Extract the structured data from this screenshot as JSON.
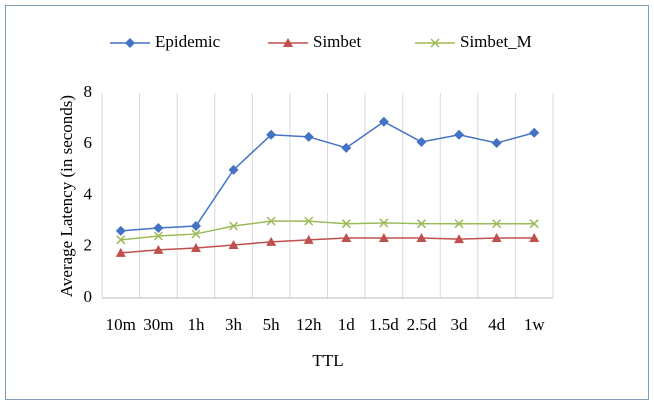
{
  "chart_data": {
    "type": "line",
    "categories": [
      "10m",
      "30m",
      "1h",
      "3h",
      "5h",
      "12h",
      "1d",
      "1.5d",
      "2.5d",
      "3d",
      "4d",
      "1w"
    ],
    "series": [
      {
        "name": "Epidemic",
        "color": "#4472c4",
        "marker": "diamond",
        "values": [
          2.62,
          2.73,
          2.81,
          5.0,
          6.37,
          6.29,
          5.86,
          6.88,
          6.09,
          6.37,
          6.05,
          6.45
        ]
      },
      {
        "name": "Simbet",
        "color": "#c0504d",
        "marker": "triangle",
        "values": [
          1.76,
          1.88,
          1.95,
          2.07,
          2.19,
          2.27,
          2.34,
          2.34,
          2.34,
          2.3,
          2.34,
          2.34
        ]
      },
      {
        "name": "Simbet_M",
        "color": "#9bbb59",
        "marker": "x",
        "values": [
          2.27,
          2.42,
          2.5,
          2.81,
          3.0,
          3.0,
          2.9,
          2.93,
          2.9,
          2.9,
          2.9,
          2.9
        ]
      }
    ],
    "x_label": "TTL",
    "y_label": "Average Latency (in seconds)",
    "ylim": [
      0,
      8
    ],
    "yticks": [
      0,
      2,
      4,
      6,
      8
    ],
    "grid": "vertical",
    "legend": "top"
  }
}
